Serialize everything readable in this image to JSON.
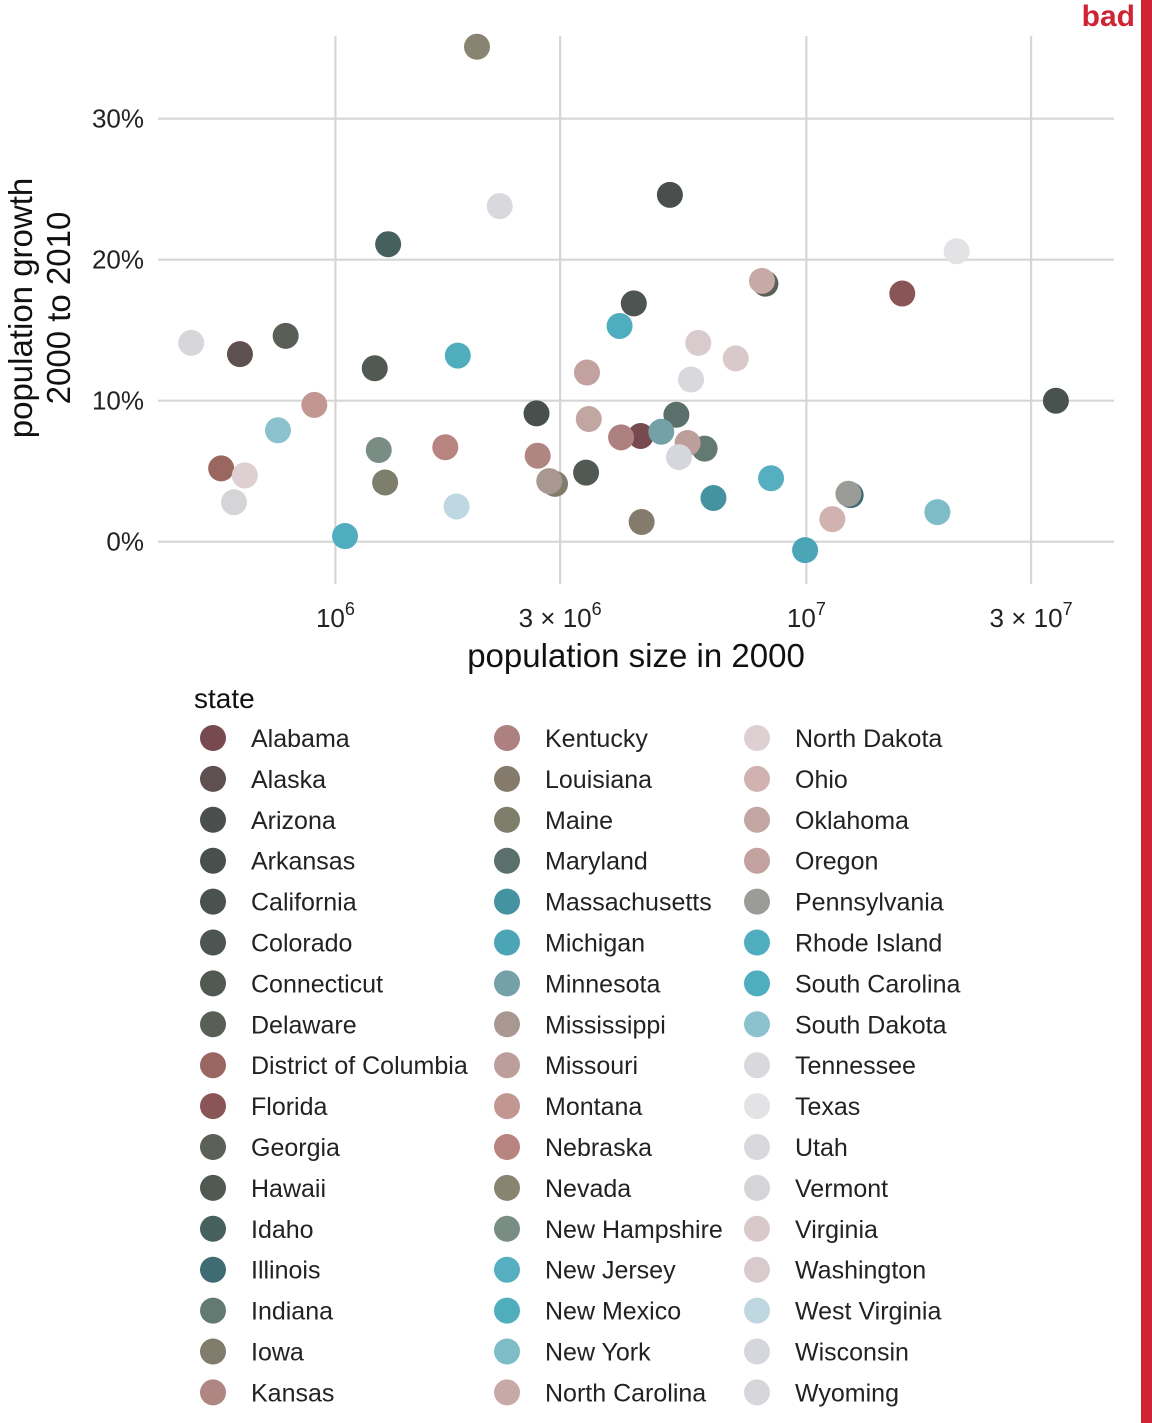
{
  "badge": "bad",
  "chart_data": {
    "type": "scatter",
    "xlabel": "population size in 2000",
    "ylabel_lines": [
      "population growth",
      "2000 to 2010"
    ],
    "x_scale": "log",
    "xlim": [
      420000,
      45000000
    ],
    "ylim": [
      -0.03,
      0.37
    ],
    "x_ticks": [
      {
        "value": 1000000,
        "base": "10",
        "exp": "6"
      },
      {
        "value": 3000000,
        "base": "3 × 10",
        "exp": "6"
      },
      {
        "value": 10000000,
        "base": "10",
        "exp": "7"
      },
      {
        "value": 30000000,
        "base": "3 × 10",
        "exp": "7"
      }
    ],
    "y_ticks": [
      {
        "value": 0.0,
        "label": "0%"
      },
      {
        "value": 0.1,
        "label": "10%"
      },
      {
        "value": 0.2,
        "label": "20%"
      },
      {
        "value": 0.3,
        "label": "30%"
      }
    ],
    "grid": true,
    "legend_title": "state",
    "legend_position": "bottom",
    "series": [
      {
        "name": "Alabama",
        "x": 4447000,
        "y": 0.075,
        "color": "#774a4f"
      },
      {
        "name": "Alaska",
        "x": 627000,
        "y": 0.133,
        "color": "#5e4f51"
      },
      {
        "name": "Arizona",
        "x": 5131000,
        "y": 0.246,
        "color": "#4a4f4d"
      },
      {
        "name": "Arkansas",
        "x": 2673000,
        "y": 0.091,
        "color": "#47504c"
      },
      {
        "name": "California",
        "x": 33872000,
        "y": 0.1,
        "color": "#4a524f"
      },
      {
        "name": "Colorado",
        "x": 4301000,
        "y": 0.169,
        "color": "#4c5551"
      },
      {
        "name": "Connecticut",
        "x": 3406000,
        "y": 0.049,
        "color": "#515952"
      },
      {
        "name": "Delaware",
        "x": 784000,
        "y": 0.146,
        "color": "#595e57"
      },
      {
        "name": "District of Columbia",
        "x": 572000,
        "y": 0.052,
        "color": "#996660"
      },
      {
        "name": "Florida",
        "x": 15982000,
        "y": 0.176,
        "color": "#8a5557"
      },
      {
        "name": "Georgia",
        "x": 8186000,
        "y": 0.183,
        "color": "#5c6158"
      },
      {
        "name": "Hawaii",
        "x": 1212000,
        "y": 0.123,
        "color": "#515952"
      },
      {
        "name": "Idaho",
        "x": 1294000,
        "y": 0.211,
        "color": "#46615d"
      },
      {
        "name": "Illinois",
        "x": 12419000,
        "y": 0.033,
        "color": "#3f6b73"
      },
      {
        "name": "Indiana",
        "x": 6080000,
        "y": 0.066,
        "color": "#637a72"
      },
      {
        "name": "Iowa",
        "x": 2926000,
        "y": 0.041,
        "color": "#807c6c"
      },
      {
        "name": "Kansas",
        "x": 2688000,
        "y": 0.061,
        "color": "#b08683"
      },
      {
        "name": "Kentucky",
        "x": 4042000,
        "y": 0.074,
        "color": "#ad8180"
      },
      {
        "name": "Louisiana",
        "x": 4469000,
        "y": 0.014,
        "color": "#857b6d"
      },
      {
        "name": "Maine",
        "x": 1275000,
        "y": 0.042,
        "color": "#7d7e6c"
      },
      {
        "name": "Maryland",
        "x": 5296000,
        "y": 0.09,
        "color": "#5b6f6b"
      },
      {
        "name": "Massachusetts",
        "x": 6349000,
        "y": 0.031,
        "color": "#4593a1"
      },
      {
        "name": "Michigan",
        "x": 9938000,
        "y": -0.006,
        "color": "#4ca5b7"
      },
      {
        "name": "Minnesota",
        "x": 4919000,
        "y": 0.078,
        "color": "#74a1a7"
      },
      {
        "name": "Mississippi",
        "x": 2845000,
        "y": 0.043,
        "color": "#a99892"
      },
      {
        "name": "Missouri",
        "x": 5595000,
        "y": 0.07,
        "color": "#bc9e9a"
      },
      {
        "name": "Montana",
        "x": 902000,
        "y": 0.097,
        "color": "#c29792"
      },
      {
        "name": "Nebraska",
        "x": 1711000,
        "y": 0.067,
        "color": "#b8847f"
      },
      {
        "name": "Nevada",
        "x": 1998000,
        "y": 0.351,
        "color": "#898472"
      },
      {
        "name": "New Hampshire",
        "x": 1236000,
        "y": 0.065,
        "color": "#7a8d85"
      },
      {
        "name": "New Jersey",
        "x": 8414000,
        "y": 0.045,
        "color": "#56afc0"
      },
      {
        "name": "New Mexico",
        "x": 1819000,
        "y": 0.132,
        "color": "#50aebc"
      },
      {
        "name": "New York",
        "x": 18976000,
        "y": 0.021,
        "color": "#7ebdc8"
      },
      {
        "name": "North Carolina",
        "x": 8049000,
        "y": 0.185,
        "color": "#c7a9a6"
      },
      {
        "name": "North Dakota",
        "x": 642000,
        "y": 0.047,
        "color": "#ddcfd2"
      },
      {
        "name": "Ohio",
        "x": 11353000,
        "y": 0.016,
        "color": "#d1b2b1"
      },
      {
        "name": "Oklahoma",
        "x": 3451000,
        "y": 0.087,
        "color": "#c2a6a2"
      },
      {
        "name": "Oregon",
        "x": 3421000,
        "y": 0.12,
        "color": "#c3a19e"
      },
      {
        "name": "Pennsylvania",
        "x": 12281000,
        "y": 0.034,
        "color": "#9b9b98"
      },
      {
        "name": "Rhode Island",
        "x": 1048000,
        "y": 0.004,
        "color": "#4fadbf"
      },
      {
        "name": "South Carolina",
        "x": 4012000,
        "y": 0.153,
        "color": "#4eadbf"
      },
      {
        "name": "South Dakota",
        "x": 755000,
        "y": 0.079,
        "color": "#8cc2cd"
      },
      {
        "name": "Tennessee",
        "x": 5689000,
        "y": 0.115,
        "color": "#d9d8dc"
      },
      {
        "name": "Texas",
        "x": 20852000,
        "y": 0.206,
        "color": "#e3e2e5"
      },
      {
        "name": "Utah",
        "x": 2233000,
        "y": 0.238,
        "color": "#d9d8dc"
      },
      {
        "name": "Vermont",
        "x": 609000,
        "y": 0.028,
        "color": "#d5d4d7"
      },
      {
        "name": "Virginia",
        "x": 7079000,
        "y": 0.13,
        "color": "#d9c9cb"
      },
      {
        "name": "Washington",
        "x": 5894000,
        "y": 0.141,
        "color": "#d9cbcd"
      },
      {
        "name": "West Virginia",
        "x": 1808000,
        "y": 0.025,
        "color": "#bfd7e0"
      },
      {
        "name": "Wisconsin",
        "x": 5364000,
        "y": 0.06,
        "color": "#d6d7dd"
      },
      {
        "name": "Wyoming",
        "x": 494000,
        "y": 0.141,
        "color": "#d7d6da"
      }
    ]
  }
}
